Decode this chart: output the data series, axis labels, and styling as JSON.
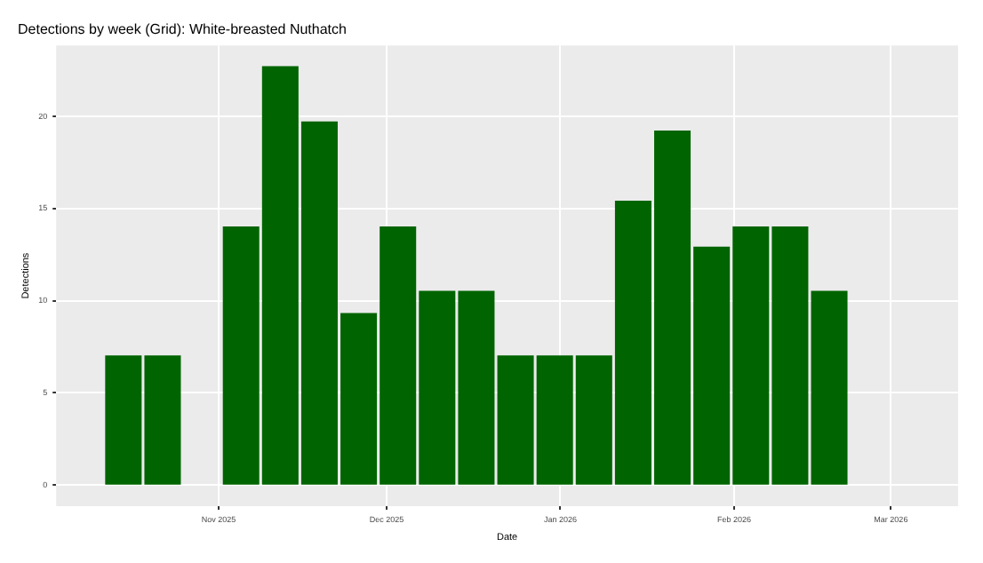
{
  "chart_data": {
    "type": "bar",
    "title": "Detections by week (Grid): White-breasted Nuthatch",
    "xlabel": "Date",
    "ylabel": "Detections",
    "x": [
      "2025-10-15",
      "2025-10-22",
      "2025-10-29",
      "2025-11-05",
      "2025-11-12",
      "2025-11-19",
      "2025-11-26",
      "2025-12-03",
      "2025-12-10",
      "2025-12-17",
      "2025-12-24",
      "2025-12-31",
      "2026-01-07",
      "2026-01-14",
      "2026-01-21",
      "2026-01-28",
      "2026-02-04",
      "2026-02-11",
      "2026-02-18"
    ],
    "values": [
      7,
      7,
      null,
      14,
      22.7,
      19.7,
      9.3,
      14,
      10.5,
      10.5,
      7,
      7,
      7,
      15.4,
      19.2,
      12.9,
      14,
      14,
      10.5
    ],
    "color": "#006400",
    "xlim": [
      "2025-10-03",
      "2026-03-13"
    ],
    "xticks": [
      {
        "value": "2025-11-01",
        "label": "Nov 2025"
      },
      {
        "value": "2025-12-01",
        "label": "Dec 2025"
      },
      {
        "value": "2026-01-01",
        "label": "Jan 2026"
      },
      {
        "value": "2026-02-01",
        "label": "Feb 2026"
      },
      {
        "value": "2026-03-01",
        "label": "Mar 2026"
      }
    ],
    "ylim": [
      -1.15,
      23.85
    ],
    "yticks": [
      0,
      5,
      10,
      15,
      20
    ],
    "grid": true,
    "legend": false
  }
}
